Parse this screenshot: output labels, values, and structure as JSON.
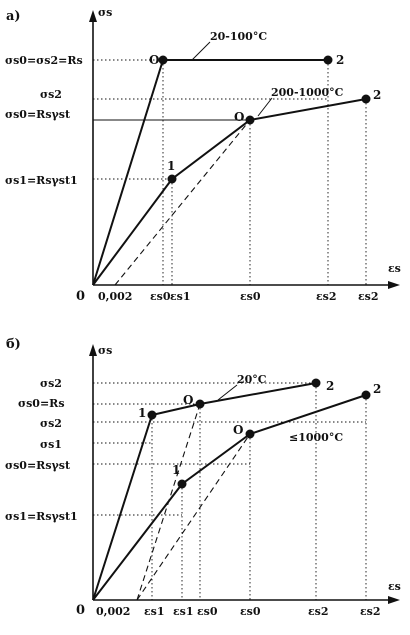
{
  "panel_a": {
    "letter": "а)",
    "y_axis": "σs",
    "x_axis": "εs",
    "origin": "0",
    "y_ticks": [
      "σs0=σs2=Rs",
      "σs2",
      "σs0=Rsγst",
      "σs1=Rsγst1"
    ],
    "x_ticks": [
      "0,002",
      "εs0",
      "εs1",
      "εs0",
      "εs2",
      "εs2"
    ],
    "curve_labels": [
      "20-100°C",
      "200-1000°C"
    ],
    "point_labels": [
      "O",
      "2",
      "O",
      "2",
      "1"
    ]
  },
  "panel_b": {
    "letter": "б)",
    "y_axis": "σs",
    "x_axis": "εs",
    "origin": "0",
    "y_ticks": [
      "σs2",
      "σs0=Rs",
      "σs2",
      "σs1",
      "σs0=Rsγst",
      "σs1=Rsγst1"
    ],
    "x_ticks": [
      "0,002",
      "εs1",
      "εs1",
      "εs0",
      "εs0",
      "εs2",
      "εs2"
    ],
    "curve_labels": [
      "20°C",
      "≤1000°C"
    ],
    "point_labels": [
      "O",
      "2",
      "1",
      "O",
      "2",
      "1"
    ]
  }
}
